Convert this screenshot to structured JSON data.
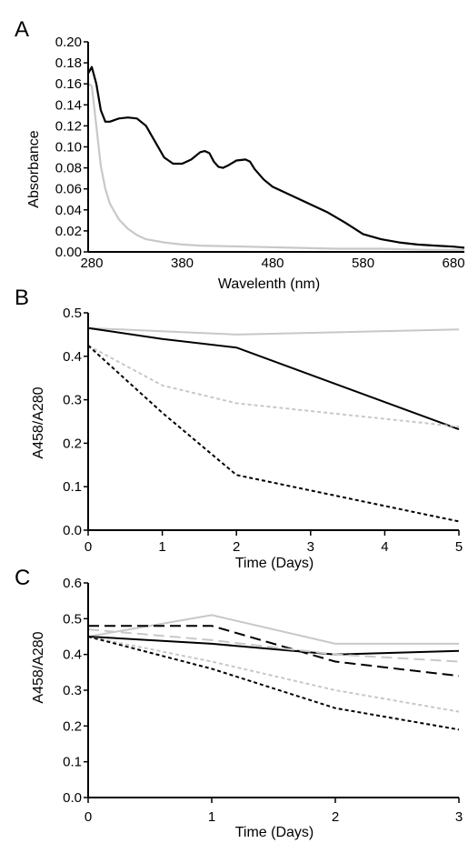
{
  "chart_data": [
    {
      "panel": "A",
      "type": "line",
      "xlabel": "Wavelenth (nm)",
      "ylabel": "Absorbance",
      "xlim": [
        276,
        692
      ],
      "ylim": [
        0,
        0.2
      ],
      "xticks": [
        280,
        380,
        480,
        580,
        680
      ],
      "xtick_labels": [
        "280",
        "380",
        "480",
        "580",
        "680"
      ],
      "yticks": [
        0,
        0.02,
        0.04,
        0.06,
        0.08,
        0.1,
        0.12,
        0.14,
        0.16,
        0.18,
        0.2
      ],
      "ytick_labels": [
        "0.00",
        "0.02",
        "0.04",
        "0.06",
        "0.08",
        "0.10",
        "0.12",
        "0.14",
        "0.16",
        "0.18",
        "0.20"
      ],
      "series": [
        {
          "color": "#000000",
          "dash": "solid",
          "x": [
            276,
            280,
            285,
            290,
            295,
            300,
            310,
            320,
            330,
            340,
            350,
            360,
            370,
            380,
            390,
            400,
            405,
            410,
            415,
            420,
            425,
            430,
            440,
            450,
            455,
            460,
            470,
            480,
            490,
            500,
            520,
            540,
            560,
            580,
            600,
            620,
            640,
            660,
            680,
            692
          ],
          "y": [
            0.17,
            0.176,
            0.16,
            0.135,
            0.124,
            0.124,
            0.127,
            0.128,
            0.127,
            0.12,
            0.105,
            0.09,
            0.084,
            0.084,
            0.088,
            0.095,
            0.096,
            0.094,
            0.086,
            0.081,
            0.08,
            0.082,
            0.087,
            0.088,
            0.086,
            0.079,
            0.069,
            0.062,
            0.058,
            0.054,
            0.046,
            0.038,
            0.028,
            0.017,
            0.012,
            0.009,
            0.007,
            0.006,
            0.005,
            0.004
          ]
        },
        {
          "color": "#c8c8c8",
          "dash": "solid",
          "x": [
            276,
            280,
            285,
            290,
            295,
            300,
            310,
            320,
            330,
            340,
            360,
            380,
            400,
            450,
            500,
            550,
            600,
            650,
            692
          ],
          "y": [
            0.16,
            0.158,
            0.12,
            0.082,
            0.06,
            0.046,
            0.031,
            0.022,
            0.016,
            0.012,
            0.009,
            0.007,
            0.006,
            0.005,
            0.004,
            0.003,
            0.003,
            0.002,
            0.002
          ]
        }
      ]
    },
    {
      "panel": "B",
      "type": "line",
      "xlabel": "Time (Days)",
      "ylabel": "A458/A280",
      "categories": [
        "0",
        "1",
        "2",
        "3",
        "4",
        "5"
      ],
      "xlim": [
        0,
        5
      ],
      "ylim": [
        0,
        0.5
      ],
      "xticks": [
        0,
        1,
        2,
        3,
        4,
        5
      ],
      "xtick_labels": [
        "0",
        "1",
        "2",
        "3",
        "4",
        "5"
      ],
      "yticks": [
        0,
        0.1,
        0.2,
        0.3,
        0.4,
        0.5
      ],
      "ytick_labels": [
        "0.0",
        "0.1",
        "0.2",
        "0.3",
        "0.4",
        "0.5"
      ],
      "series": [
        {
          "color": "#c8c8c8",
          "dash": "solid",
          "x": [
            0,
            2,
            5
          ],
          "y": [
            0.465,
            0.45,
            0.462
          ]
        },
        {
          "color": "#000000",
          "dash": "solid",
          "x": [
            0,
            1,
            2,
            5
          ],
          "y": [
            0.465,
            0.44,
            0.42,
            0.232
          ]
        },
        {
          "color": "#c8c8c8",
          "dash": "short",
          "x": [
            0,
            1,
            2,
            5
          ],
          "y": [
            0.425,
            0.333,
            0.292,
            0.238
          ]
        },
        {
          "color": "#000000",
          "dash": "short",
          "x": [
            0,
            1,
            2,
            5
          ],
          "y": [
            0.425,
            0.27,
            0.127,
            0.02
          ]
        }
      ]
    },
    {
      "panel": "C",
      "type": "line",
      "xlabel": "Time (Days)",
      "ylabel": "A458/A280",
      "categories": [
        "0",
        "1",
        "2",
        "3"
      ],
      "xlim": [
        0,
        3
      ],
      "ylim": [
        0,
        0.6
      ],
      "xticks": [
        0,
        1,
        2,
        3
      ],
      "xtick_labels": [
        "0",
        "1",
        "2",
        "3"
      ],
      "yticks": [
        0,
        0.1,
        0.2,
        0.3,
        0.4,
        0.5,
        0.6
      ],
      "ytick_labels": [
        "0.0",
        "0.1",
        "0.2",
        "0.3",
        "0.4",
        "0.5",
        "0.6"
      ],
      "series": [
        {
          "color": "#c8c8c8",
          "dash": "solid",
          "x": [
            0,
            1,
            2,
            3
          ],
          "y": [
            0.45,
            0.51,
            0.43,
            0.43
          ]
        },
        {
          "color": "#000000",
          "dash": "solid",
          "x": [
            0,
            1,
            2,
            3
          ],
          "y": [
            0.45,
            0.43,
            0.4,
            0.41
          ]
        },
        {
          "color": "#000000",
          "dash": "long",
          "x": [
            0,
            1,
            2,
            3
          ],
          "y": [
            0.48,
            0.48,
            0.38,
            0.34
          ]
        },
        {
          "color": "#c8c8c8",
          "dash": "long",
          "x": [
            0,
            1,
            2,
            3
          ],
          "y": [
            0.47,
            0.44,
            0.4,
            0.38
          ]
        },
        {
          "color": "#c8c8c8",
          "dash": "short",
          "x": [
            0,
            1,
            2,
            3
          ],
          "y": [
            0.45,
            0.38,
            0.3,
            0.24
          ]
        },
        {
          "color": "#000000",
          "dash": "short",
          "x": [
            0,
            1,
            2,
            3
          ],
          "y": [
            0.45,
            0.36,
            0.25,
            0.19
          ]
        }
      ]
    }
  ]
}
